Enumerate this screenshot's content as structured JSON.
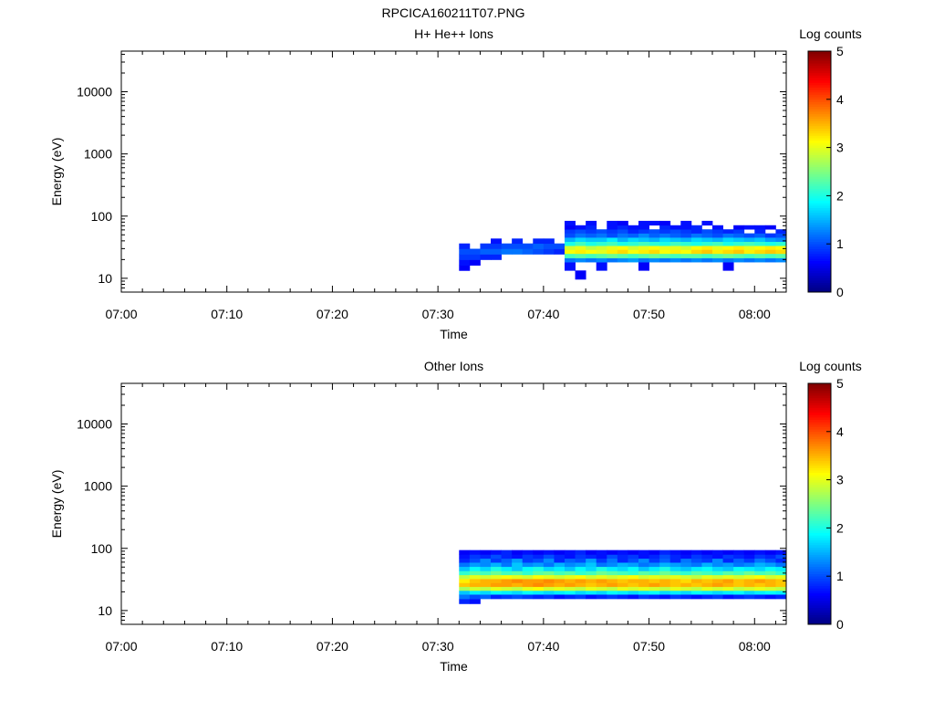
{
  "figure_title": "RPCICA160211T07.PNG",
  "chart_data": [
    {
      "type": "heatmap",
      "title": "H+ He++ Ions",
      "xlabel": "Time",
      "ylabel": "Energy (eV)",
      "y_scale": "log",
      "xlim": [
        "07:00",
        "08:03"
      ],
      "ylim": [
        6,
        45000
      ],
      "x_ticks": [
        "07:00",
        "07:10",
        "07:20",
        "07:30",
        "07:40",
        "07:50",
        "08:00"
      ],
      "y_ticks": [
        "10",
        "100",
        "1000",
        "10000"
      ],
      "colorbar": {
        "label": "Log counts",
        "range": [
          0,
          5
        ],
        "ticks": [
          "0",
          "1",
          "2",
          "3",
          "4",
          "5"
        ]
      },
      "segments": [
        {
          "t_start": "07:32",
          "t_end": "07:42",
          "rows": [
            {
              "energy_ev": 14.5,
              "log_counts": [
                0.6,
                0,
                0,
                0,
                0,
                0,
                0,
                0,
                0,
                0
              ]
            },
            {
              "energy_ev": 18,
              "log_counts": [
                0.7,
                0.6,
                0,
                0,
                0,
                0,
                0,
                0,
                0,
                0
              ]
            },
            {
              "energy_ev": 22,
              "log_counts": [
                0.9,
                0.9,
                0.8,
                0.8,
                0,
                0,
                0,
                0,
                0,
                0
              ]
            },
            {
              "energy_ev": 27,
              "log_counts": [
                1.0,
                1.0,
                1.1,
                1.1,
                1.2,
                1.2,
                1.1,
                1.0,
                0.9,
                0.8
              ]
            },
            {
              "energy_ev": 33,
              "log_counts": [
                0.8,
                0,
                0.9,
                0.9,
                1.0,
                1.0,
                1.0,
                1.1,
                1.0,
                1.0
              ]
            },
            {
              "energy_ev": 40,
              "log_counts": [
                0,
                0,
                0,
                0.7,
                0,
                0.8,
                0,
                0.8,
                0.8,
                0
              ]
            }
          ]
        },
        {
          "t_start": "07:42",
          "t_end": "08:03",
          "rows": [
            {
              "energy_ev": 10.5,
              "log_counts": [
                0,
                0.6,
                0,
                0,
                0,
                0,
                0,
                0,
                0,
                0,
                0,
                0,
                0,
                0,
                0,
                0,
                0,
                0,
                0,
                0,
                0
              ]
            },
            {
              "energy_ev": 17,
              "log_counts": [
                0.7,
                0,
                0,
                0.7,
                0,
                0,
                0,
                0.6,
                0,
                0,
                0,
                0,
                0,
                0,
                0,
                0.6,
                0,
                0,
                0,
                0,
                0
              ]
            },
            {
              "energy_ev": 19.5,
              "log_counts": [
                1.2,
                1.3,
                1.2,
                1.3,
                1.2,
                1.3,
                1.4,
                1.2,
                1.3,
                1.2,
                1.3,
                1.2,
                1.3,
                1.2,
                1.3,
                1.2,
                1.3,
                1.2,
                1.3,
                1.2,
                1.3
              ]
            },
            {
              "energy_ev": 23,
              "log_counts": [
                2.2,
                2.3,
                2.2,
                2.3,
                2.4,
                2.3,
                2.2,
                2.3,
                2.4,
                2.3,
                2.2,
                2.3,
                2.3,
                2.2,
                2.3,
                2.4,
                2.3,
                2.2,
                2.3,
                2.2,
                2.3
              ]
            },
            {
              "energy_ev": 27,
              "log_counts": [
                3.1,
                3.2,
                3.1,
                3.0,
                3.2,
                3.3,
                3.1,
                3.2,
                3.3,
                3.1,
                3.2,
                3.1,
                3.3,
                3.4,
                3.2,
                3.3,
                3.4,
                3.2,
                3.3,
                3.4,
                3.3
              ]
            },
            {
              "energy_ev": 31,
              "log_counts": [
                2.9,
                3.0,
                2.8,
                2.9,
                3.0,
                3.1,
                2.9,
                3.0,
                3.1,
                3.0,
                3.0,
                2.9,
                3.1,
                3.2,
                3.0,
                3.1,
                3.2,
                3.0,
                3.1,
                3.2,
                3.1
              ]
            },
            {
              "energy_ev": 36,
              "log_counts": [
                2.0,
                2.2,
                2.0,
                2.1,
                2.2,
                2.0,
                2.1,
                2.2,
                2.1,
                2.0,
                2.2,
                2.1,
                2.0,
                2.1,
                2.2,
                2.0,
                2.1,
                2.2,
                2.1,
                2.0,
                2.1
              ]
            },
            {
              "energy_ev": 42,
              "log_counts": [
                1.5,
                1.7,
                1.6,
                1.6,
                1.8,
                1.5,
                1.7,
                1.6,
                1.5,
                1.7,
                1.6,
                1.5,
                1.7,
                1.6,
                1.5,
                1.7,
                1.6,
                1.5,
                1.6,
                1.4,
                1.3
              ]
            },
            {
              "energy_ev": 49,
              "log_counts": [
                1.0,
                1.2,
                1.1,
                1.2,
                1.0,
                1.2,
                1.1,
                1.3,
                1.1,
                1.2,
                1.1,
                1.0,
                1.2,
                1.1,
                1.0,
                1.2,
                1.1,
                1.0,
                1.1,
                0.9,
                1.0
              ]
            },
            {
              "energy_ev": 57,
              "log_counts": [
                0.9,
                1.0,
                0.9,
                1.0,
                0.9,
                1.0,
                0.8,
                0.9,
                1.0,
                0.9,
                1.0,
                0.9,
                0.8,
                1.0,
                0.9,
                0.8,
                0.9,
                0,
                0.8,
                0,
                0.8
              ]
            },
            {
              "energy_ev": 66,
              "log_counts": [
                0.6,
                0.7,
                0.8,
                0,
                0.7,
                0.8,
                0.7,
                0.7,
                0,
                0.8,
                0.7,
                0.7,
                0.8,
                0,
                0.7,
                0,
                0.6,
                0.7,
                0.7,
                0.6,
                0
              ]
            },
            {
              "energy_ev": 77,
              "log_counts": [
                0.7,
                0,
                0.7,
                0,
                0.7,
                0.6,
                0,
                0.7,
                0.7,
                0.6,
                0,
                0.7,
                0,
                0.7,
                0,
                0,
                0,
                0,
                0,
                0,
                0
              ]
            }
          ]
        }
      ]
    },
    {
      "type": "heatmap",
      "title": "Other Ions",
      "xlabel": "Time",
      "ylabel": "Energy (eV)",
      "y_scale": "log",
      "xlim": [
        "07:00",
        "08:03"
      ],
      "ylim": [
        6,
        45000
      ],
      "x_ticks": [
        "07:00",
        "07:10",
        "07:20",
        "07:30",
        "07:40",
        "07:50",
        "08:00"
      ],
      "y_ticks": [
        "10",
        "100",
        "1000",
        "10000"
      ],
      "colorbar": {
        "label": "Log counts",
        "range": [
          0,
          5
        ],
        "ticks": [
          "0",
          "1",
          "2",
          "3",
          "4",
          "5"
        ]
      },
      "segments": [
        {
          "t_start": "07:32",
          "t_end": "08:03",
          "rows": [
            {
              "energy_ev": 14,
              "log_counts": [
                0.8,
                0.7,
                0,
                0,
                0,
                0,
                0,
                0,
                0,
                0,
                0,
                0,
                0,
                0,
                0,
                0,
                0,
                0,
                0,
                0,
                0,
                0,
                0,
                0,
                0,
                0,
                0,
                0,
                0,
                0,
                0
              ]
            },
            {
              "energy_ev": 17,
              "log_counts": [
                1.2,
                1.0,
                1.1,
                0.8,
                0.9,
                1.0,
                0.9,
                0.8,
                0.9,
                0.7,
                0.8,
                0.9,
                0.7,
                0.8,
                0.9,
                0.8,
                0.7,
                0.9,
                0.8,
                0.7,
                0.9,
                0.8,
                0.7,
                0.8,
                0.9,
                0.7,
                0.8,
                0.9,
                0.8,
                0.7,
                0.8
              ]
            },
            {
              "energy_ev": 19.5,
              "log_counts": [
                1.6,
                1.8,
                1.7,
                1.9,
                1.8,
                1.7,
                1.9,
                1.8,
                1.7,
                1.8,
                1.9,
                1.7,
                1.8,
                1.7,
                1.9,
                1.8,
                1.7,
                1.8,
                1.9,
                1.7,
                1.8,
                1.7,
                1.9,
                1.8,
                1.7,
                1.8,
                1.9,
                1.7,
                1.8,
                1.9,
                1.8
              ]
            },
            {
              "energy_ev": 22.5,
              "log_counts": [
                2.7,
                2.9,
                2.8,
                3.0,
                2.9,
                2.8,
                3.0,
                3.1,
                2.9,
                3.0,
                2.9,
                2.8,
                3.0,
                2.9,
                2.8,
                3.0,
                2.9,
                3.0,
                2.9,
                2.8,
                3.0,
                2.9,
                2.8,
                3.0,
                2.9,
                3.0,
                2.8,
                2.9,
                3.0,
                2.9,
                2.8
              ]
            },
            {
              "energy_ev": 26,
              "log_counts": [
                3.4,
                3.5,
                3.5,
                3.6,
                3.6,
                3.5,
                3.6,
                3.7,
                3.6,
                3.5,
                3.6,
                3.5,
                3.4,
                3.5,
                3.6,
                3.5,
                3.4,
                3.5,
                3.6,
                3.5,
                3.4,
                3.5,
                3.4,
                3.5,
                3.6,
                3.5,
                3.4,
                3.5,
                3.4,
                3.5,
                3.4
              ]
            },
            {
              "energy_ev": 30,
              "log_counts": [
                3.2,
                3.4,
                3.5,
                3.5,
                3.6,
                3.7,
                3.6,
                3.6,
                3.7,
                3.6,
                3.5,
                3.6,
                3.5,
                3.6,
                3.5,
                3.4,
                3.5,
                3.5,
                3.4,
                3.5,
                3.4,
                3.3,
                3.5,
                3.4,
                3.5,
                3.6,
                3.4,
                3.5,
                3.6,
                3.5,
                3.4
              ]
            },
            {
              "energy_ev": 35,
              "log_counts": [
                2.8,
                3.0,
                2.9,
                3.0,
                3.1,
                3.0,
                2.9,
                3.1,
                3.0,
                2.9,
                3.0,
                3.1,
                2.9,
                3.0,
                2.9,
                3.0,
                3.1,
                2.9,
                3.0,
                2.9,
                3.0,
                2.9,
                2.8,
                3.0,
                2.9,
                3.0,
                2.9,
                3.0,
                3.1,
                2.9,
                3.0
              ]
            },
            {
              "energy_ev": 40,
              "log_counts": [
                2.1,
                2.3,
                2.2,
                2.4,
                2.2,
                2.3,
                2.1,
                2.3,
                2.4,
                2.2,
                2.3,
                2.1,
                2.2,
                2.4,
                2.3,
                2.2,
                2.1,
                2.3,
                2.2,
                2.4,
                2.2,
                2.1,
                2.3,
                2.2,
                2.1,
                2.3,
                2.2,
                2.4,
                2.2,
                2.3,
                2.1
              ]
            },
            {
              "energy_ev": 47,
              "log_counts": [
                1.6,
                1.9,
                1.7,
                2.0,
                1.8,
                1.6,
                1.9,
                2.0,
                1.7,
                1.8,
                1.6,
                1.9,
                1.7,
                2.0,
                1.8,
                1.7,
                1.9,
                1.6,
                1.8,
                2.0,
                1.7,
                1.6,
                1.8,
                1.9,
                1.7,
                1.6,
                1.9,
                1.8,
                1.7,
                1.9,
                1.8
              ]
            },
            {
              "energy_ev": 55,
              "log_counts": [
                1.2,
                1.4,
                1.3,
                1.5,
                1.2,
                1.6,
                1.3,
                1.4,
                1.2,
                1.5,
                1.3,
                1.4,
                1.6,
                1.2,
                1.3,
                1.5,
                1.4,
                1.2,
                1.3,
                1.5,
                1.4,
                1.3,
                1.2,
                1.5,
                1.3,
                1.4,
                1.2,
                1.3,
                1.5,
                1.4,
                1.2
              ]
            },
            {
              "energy_ev": 64,
              "log_counts": [
                0.8,
                1.0,
                1.3,
                0.9,
                1.1,
                1.4,
                0.9,
                1.0,
                1.3,
                0.8,
                1.1,
                1.0,
                1.4,
                0.9,
                1.2,
                0.8,
                1.0,
                1.3,
                0.9,
                1.1,
                0.8,
                1.2,
                1.0,
                0.9,
                1.3,
                0.8,
                1.1,
                0.9,
                1.2,
                1.0,
                0.8
              ]
            },
            {
              "energy_ev": 74,
              "log_counts": [
                0.7,
                0.9,
                0.8,
                1.0,
                0.8,
                0.7,
                0.9,
                0.8,
                1.0,
                0.8,
                0.7,
                0.9,
                0.8,
                0.7,
                1.0,
                0.8,
                0.9,
                0.7,
                0.8,
                1.0,
                0.8,
                0.7,
                0.9,
                0.8,
                0.7,
                0.9,
                0.8,
                0.7,
                0.9,
                0.8,
                1.0
              ]
            },
            {
              "energy_ev": 86,
              "log_counts": [
                0.6,
                0.7,
                0.6,
                0.7,
                0.8,
                0.6,
                0.7,
                0.6,
                0.7,
                0.6,
                0.7,
                0.8,
                0.6,
                0.7,
                0.6,
                0.7,
                0.6,
                0.7,
                0.6,
                0.8,
                0.7,
                0.6,
                0.7,
                0.6,
                0.7,
                0.6,
                0.7,
                0.6,
                0.7,
                0.6,
                0.7
              ]
            }
          ]
        }
      ]
    }
  ]
}
